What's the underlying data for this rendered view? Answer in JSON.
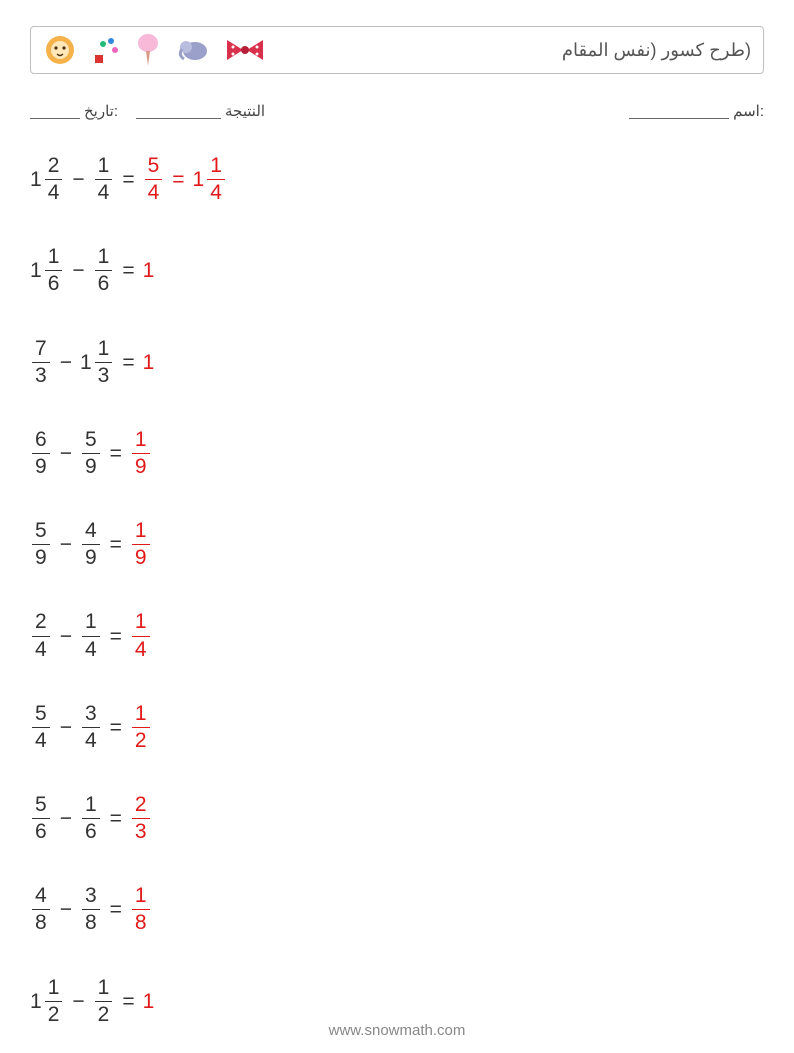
{
  "title": "(طرح كسور (نفس المقام",
  "fields": {
    "name_label": ":اسم",
    "score_label": "النتيجة",
    "date_label": ":تاريخ"
  },
  "answer_color": "#e21919",
  "text_color": "#333333",
  "problems": [
    {
      "a": {
        "whole": "1",
        "num": "2",
        "den": "4"
      },
      "b": {
        "num": "1",
        "den": "4"
      },
      "answers": [
        {
          "frac": {
            "num": "5",
            "den": "4"
          }
        },
        {
          "mixed": {
            "whole": "1",
            "num": "1",
            "den": "4"
          }
        }
      ]
    },
    {
      "a": {
        "whole": "1",
        "num": "1",
        "den": "6"
      },
      "b": {
        "num": "1",
        "den": "6"
      },
      "answers": [
        {
          "int": "1"
        }
      ]
    },
    {
      "a": {
        "num": "7",
        "den": "3"
      },
      "b": {
        "whole": "1",
        "num": "1",
        "den": "3"
      },
      "answers": [
        {
          "int": "1"
        }
      ]
    },
    {
      "a": {
        "num": "6",
        "den": "9"
      },
      "b": {
        "num": "5",
        "den": "9"
      },
      "answers": [
        {
          "frac": {
            "num": "1",
            "den": "9"
          }
        }
      ]
    },
    {
      "a": {
        "num": "5",
        "den": "9"
      },
      "b": {
        "num": "4",
        "den": "9"
      },
      "answers": [
        {
          "frac": {
            "num": "1",
            "den": "9"
          }
        }
      ]
    },
    {
      "a": {
        "num": "2",
        "den": "4"
      },
      "b": {
        "num": "1",
        "den": "4"
      },
      "answers": [
        {
          "frac": {
            "num": "1",
            "den": "4"
          }
        }
      ]
    },
    {
      "a": {
        "num": "5",
        "den": "4"
      },
      "b": {
        "num": "3",
        "den": "4"
      },
      "answers": [
        {
          "frac": {
            "num": "1",
            "den": "2"
          }
        }
      ]
    },
    {
      "a": {
        "num": "5",
        "den": "6"
      },
      "b": {
        "num": "1",
        "den": "6"
      },
      "answers": [
        {
          "frac": {
            "num": "2",
            "den": "3"
          }
        }
      ]
    },
    {
      "a": {
        "num": "4",
        "den": "8"
      },
      "b": {
        "num": "3",
        "den": "8"
      },
      "answers": [
        {
          "frac": {
            "num": "1",
            "den": "8"
          }
        }
      ]
    },
    {
      "a": {
        "whole": "1",
        "num": "1",
        "den": "2"
      },
      "b": {
        "num": "1",
        "den": "2"
      },
      "answers": [
        {
          "int": "1"
        }
      ]
    }
  ],
  "footer": "www.snowmath.com"
}
